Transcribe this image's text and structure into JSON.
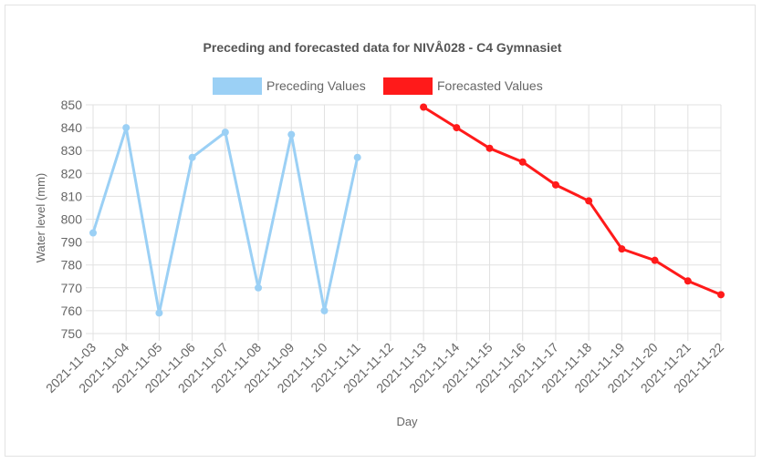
{
  "colors": {
    "preceding": "#9bd0f5",
    "forecasted": "#ff1a1a",
    "grid": "#e1e1e1",
    "text": "#666666",
    "title": "#555555"
  },
  "chart_data": {
    "type": "line",
    "title": "Preceding and forecasted data for NIVÅ028 - C4 Gymnasiet",
    "xlabel": "Day",
    "ylabel": "Water level (mm)",
    "ylim": [
      750,
      850
    ],
    "yticks": [
      750,
      760,
      770,
      780,
      790,
      800,
      810,
      820,
      830,
      840,
      850
    ],
    "grid": true,
    "legend_position": "top",
    "categories": [
      "2021-11-03",
      "2021-11-04",
      "2021-11-05",
      "2021-11-06",
      "2021-11-07",
      "2021-11-08",
      "2021-11-09",
      "2021-11-10",
      "2021-11-11",
      "2021-11-12",
      "2021-11-13",
      "2021-11-14",
      "2021-11-15",
      "2021-11-16",
      "2021-11-17",
      "2021-11-18",
      "2021-11-19",
      "2021-11-20",
      "2021-11-21",
      "2021-11-22"
    ],
    "series": [
      {
        "name": "Preceding Values",
        "color": "#9bd0f5",
        "values": [
          794,
          840,
          759,
          827,
          838,
          770,
          837,
          760,
          827,
          null,
          null,
          null,
          null,
          null,
          null,
          null,
          null,
          null,
          null,
          null
        ]
      },
      {
        "name": "Forecasted Values",
        "color": "#ff1a1a",
        "values": [
          null,
          null,
          null,
          null,
          null,
          null,
          null,
          null,
          null,
          null,
          849,
          840,
          831,
          825,
          815,
          808,
          787,
          782,
          773,
          767
        ]
      }
    ]
  }
}
